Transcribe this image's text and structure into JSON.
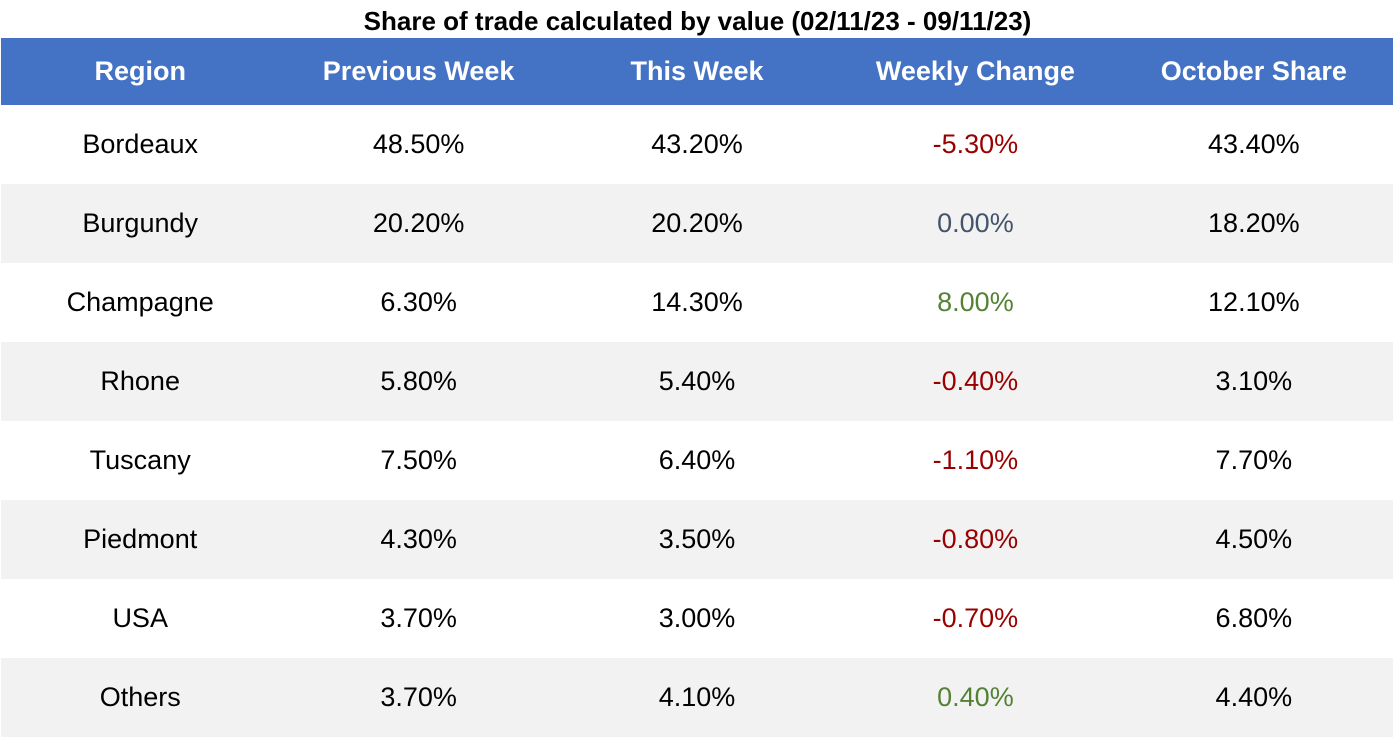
{
  "title": "Share of trade calculated by value (02/11/23 - 09/11/23)",
  "colors": {
    "header_bg": "#4472c4",
    "header_text": "#ffffff",
    "row_alt_bg": "#f2f2f2",
    "negative": "#990000",
    "zero": "#44546a",
    "positive": "#548235"
  },
  "chart_data": {
    "type": "table",
    "title": "Share of trade calculated by value (02/11/23 - 09/11/23)",
    "columns": [
      "Region",
      "Previous Week",
      "This Week",
      "Weekly Change",
      "October Share"
    ],
    "rows": [
      {
        "region": "Bordeaux",
        "previous_week": "48.50%",
        "this_week": "43.20%",
        "weekly_change": "-5.30%",
        "october_share": "43.40%"
      },
      {
        "region": "Burgundy",
        "previous_week": "20.20%",
        "this_week": "20.20%",
        "weekly_change": "0.00%",
        "october_share": "18.20%"
      },
      {
        "region": "Champagne",
        "previous_week": "6.30%",
        "this_week": "14.30%",
        "weekly_change": "8.00%",
        "october_share": "12.10%"
      },
      {
        "region": "Rhone",
        "previous_week": "5.80%",
        "this_week": "5.40%",
        "weekly_change": "-0.40%",
        "october_share": "3.10%"
      },
      {
        "region": "Tuscany",
        "previous_week": "7.50%",
        "this_week": "6.40%",
        "weekly_change": "-1.10%",
        "october_share": "7.70%"
      },
      {
        "region": "Piedmont",
        "previous_week": "4.30%",
        "this_week": "3.50%",
        "weekly_change": "-0.80%",
        "october_share": "4.50%"
      },
      {
        "region": "USA",
        "previous_week": "3.70%",
        "this_week": "3.00%",
        "weekly_change": "-0.70%",
        "october_share": "6.80%"
      },
      {
        "region": "Others",
        "previous_week": "3.70%",
        "this_week": "4.10%",
        "weekly_change": "0.40%",
        "october_share": "4.40%"
      }
    ]
  }
}
